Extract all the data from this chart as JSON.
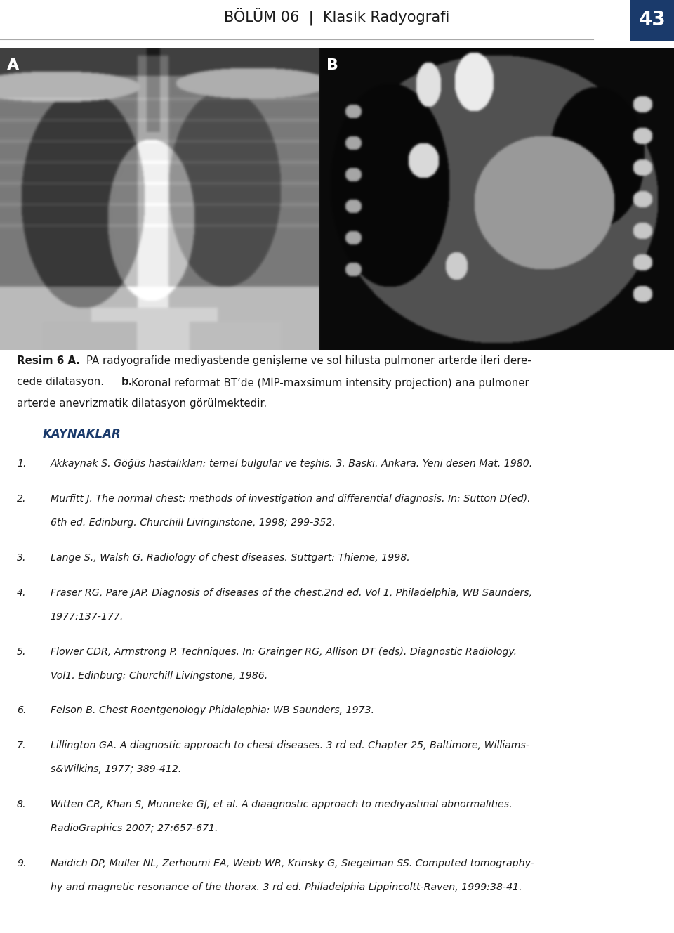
{
  "header_text": "BÖLÜM 06  |  Klasik Radyografi",
  "page_number": "43",
  "page_num_bg": "#1a3a6b",
  "page_num_color": "#ffffff",
  "label_A": "A",
  "label_B": "B",
  "caption_line1_bold": "Resim 6 A.",
  "caption_line1_normal": " PA radyografide mediyastende genışleme ve sol hilusta pulmoner arterde ileri dere-",
  "caption_line2_normal": "cede dilatasyon. ",
  "caption_line2_bold": "b.",
  "caption_line2_normal2": " Koronal reformat BT’de (MİP-maxsimum intensity projection) ana pulmoner",
  "caption_line3": "arterde anevrizmatik dilatasyon görülmektedir.",
  "kaynaklar_title": "KAYNAKLAR",
  "references": [
    "Akkaynak S. Göğüs hastalıkları: temel bulgular ve teşhis. 3. Baskı. Ankara. Yeni desen Mat. 1980.",
    "Murfitt J. The normal chest: methods of investigation and differential diagnosis. In: Sutton D(ed).\n6th ed. Edinburg. Churchill Livinginstone, 1998; 299-352.",
    "Lange S., Walsh G. Radiology of chest diseases. Suttgart: Thieme, 1998.",
    "Fraser RG, Pare JAP. Diagnosis of diseases of the chest.2nd ed. Vol 1, Philadelphia, WB Saunders,\n1977:137-177.",
    "Flower CDR, Armstrong P. Techniques. In: Grainger RG, Allison DT (eds). Diagnostic Radiology.\nVol1. Edinburg: Churchill Livingstone, 1986.",
    "Felson B. Chest Roentgenology Phidalephia: WB Saunders, 1973.",
    "Lillington GA. A diagnostic approach to chest diseases. 3 rd ed. Chapter 25, Baltimore, Williams-\ns&Wilkins, 1977; 389-412.",
    "Witten CR, Khan S, Munneke GJ, et al. A diaagnostic approach to mediyastinal abnormalities.\nRadioGraphics 2007; 27:657-671.",
    "Naidich DP, Muller NL, Zerhoumi EA, Webb WR, Krinsky G, Siegelman SS. Computed tomography-\nhy and magnetic resonance of the thorax. 3 rd ed. Philadelphia Lippincoltt-Raven, 1999:38-41."
  ],
  "bg_color": "#ffffff",
  "text_color": "#1a1a1a",
  "header_color": "#1a1a1a",
  "kaynaklar_color": "#1a3a6b",
  "header_line_color": "#aaaaaa"
}
